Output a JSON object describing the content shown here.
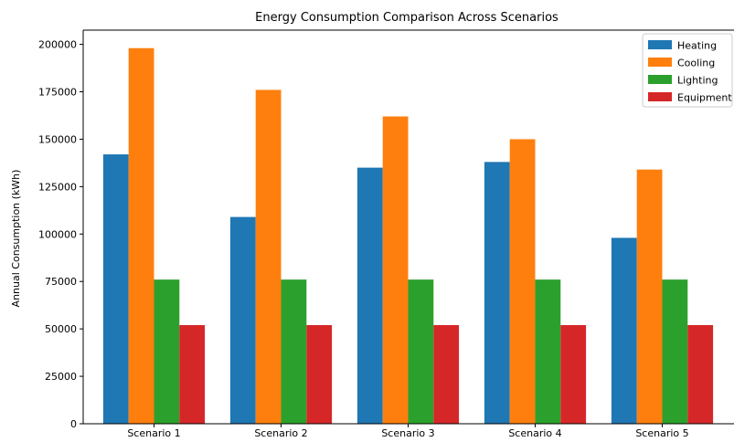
{
  "chart_data": {
    "type": "bar",
    "title": "Energy Consumption Comparison Across Scenarios",
    "xlabel": "",
    "ylabel": "Annual Consumption (kWh)",
    "categories": [
      "Scenario 1",
      "Scenario 2",
      "Scenario 3",
      "Scenario 4",
      "Scenario 5"
    ],
    "series": [
      {
        "name": "Heating",
        "color": "#1f77b4",
        "values": [
          142000,
          109000,
          135000,
          138000,
          98000
        ]
      },
      {
        "name": "Cooling",
        "color": "#ff7f0e",
        "values": [
          198000,
          176000,
          162000,
          150000,
          134000
        ]
      },
      {
        "name": "Lighting",
        "color": "#2ca02c",
        "values": [
          76000,
          76000,
          76000,
          76000,
          76000
        ]
      },
      {
        "name": "Equipment",
        "color": "#d62728",
        "values": [
          52000,
          52000,
          52000,
          52000,
          52000
        ]
      }
    ],
    "ylim": [
      0,
      207500
    ],
    "yticks": [
      0,
      25000,
      50000,
      75000,
      100000,
      125000,
      150000,
      175000,
      200000
    ],
    "ytick_labels": [
      "0",
      "25000",
      "50000",
      "75000",
      "100000",
      "125000",
      "150000",
      "175000",
      "200000"
    ],
    "grid": false,
    "legend_position": "top-right"
  }
}
